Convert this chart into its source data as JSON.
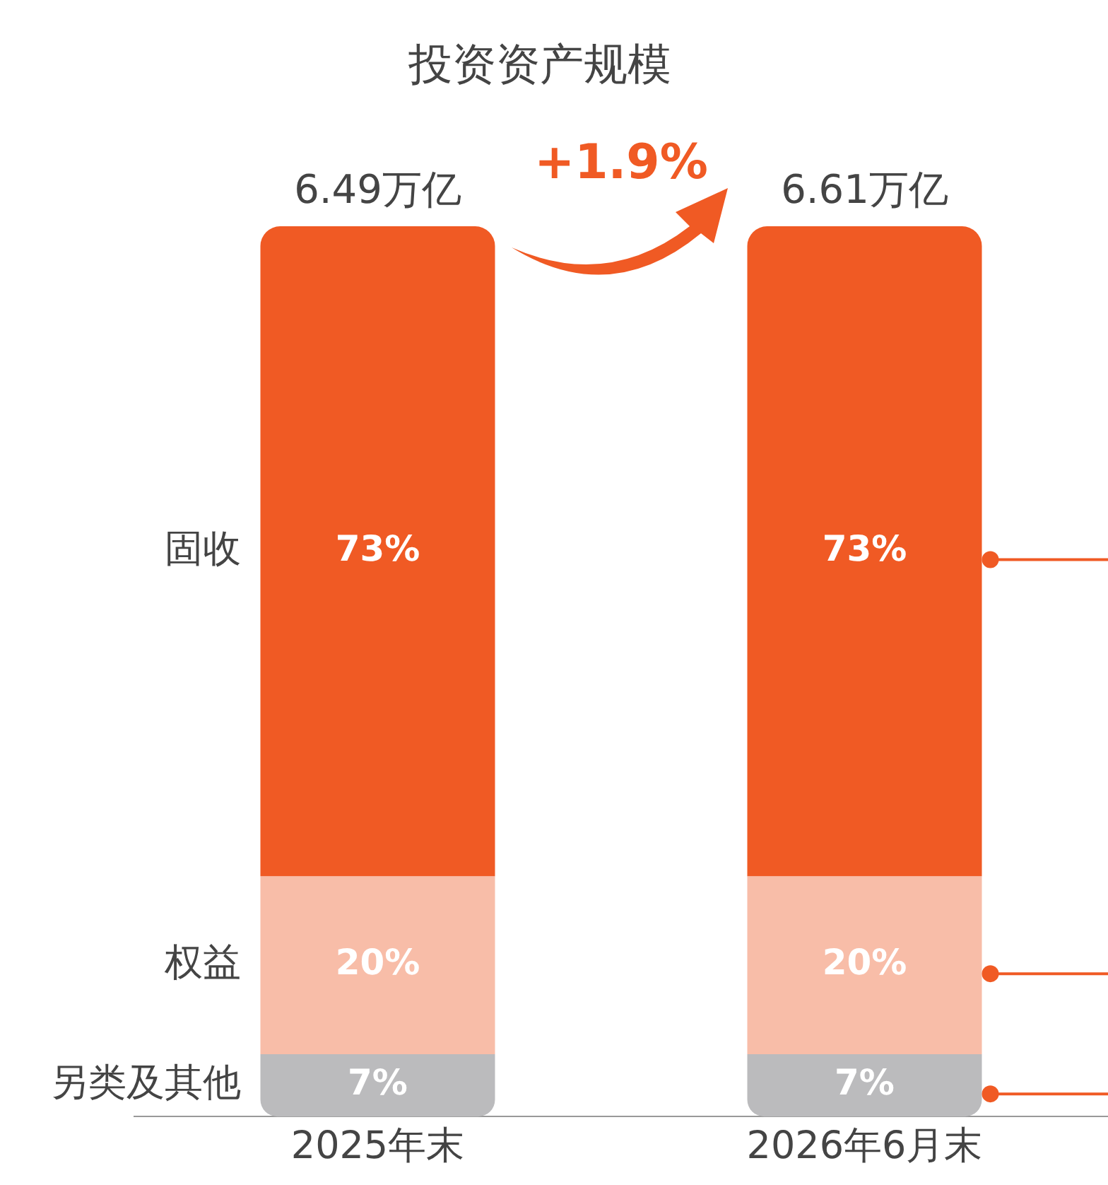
{
  "chart_data": {
    "type": "bar",
    "title": "投资资产规模",
    "stacked": true,
    "categories": [
      "2025年末",
      "2026年6月末"
    ],
    "series": [
      {
        "name": "另类及其他",
        "color": "#bbbbbd",
        "values": [
          7,
          7
        ],
        "value_labels": [
          "7%",
          "7%"
        ]
      },
      {
        "name": "权益",
        "color": "#f8bda8",
        "values": [
          20,
          20
        ],
        "value_labels": [
          "20%",
          "20%"
        ]
      },
      {
        "name": "固收",
        "color": "#f05a24",
        "values": [
          73,
          73
        ],
        "value_labels": [
          "73%",
          "73%"
        ]
      }
    ],
    "annotations": [
      "+1.9%",
      "6.49万亿",
      "6.61万亿"
    ],
    "legend": false,
    "grid": false
  }
}
